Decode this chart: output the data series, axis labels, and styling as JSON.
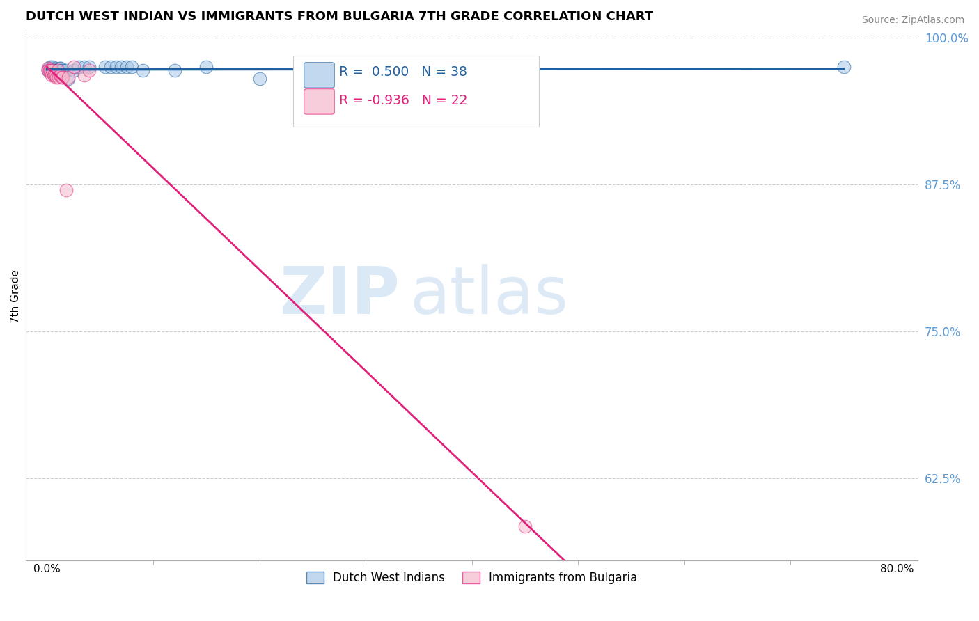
{
  "title": "DUTCH WEST INDIAN VS IMMIGRANTS FROM BULGARIA 7TH GRADE CORRELATION CHART",
  "source": "Source: ZipAtlas.com",
  "ylabel": "7th Grade",
  "blue_R": 0.5,
  "blue_N": 38,
  "pink_R": -0.936,
  "pink_N": 22,
  "blue_color": "#a8c8e8",
  "pink_color": "#f4b8cc",
  "blue_line_color": "#2060a0",
  "pink_line_color": "#e0207a",
  "watermark_zip": "ZIP",
  "watermark_atlas": "atlas",
  "background_color": "#ffffff",
  "grid_color": "#cccccc",
  "axis_color": "#aaaaaa",
  "right_tick_color": "#5b9bd5",
  "legend_text_color": "#2060a0",
  "blue_scatter_x": [
    0.001,
    0.001,
    0.002,
    0.002,
    0.003,
    0.004,
    0.004,
    0.005,
    0.006,
    0.006,
    0.007,
    0.008,
    0.008,
    0.009,
    0.01,
    0.011,
    0.012,
    0.013,
    0.014,
    0.015,
    0.018,
    0.02,
    0.025,
    0.03,
    0.035,
    0.04,
    0.055,
    0.06,
    0.065,
    0.07,
    0.075,
    0.08,
    0.09,
    0.12,
    0.15,
    0.2,
    0.3,
    0.75
  ],
  "blue_scatter_y": [
    0.973,
    0.972,
    0.974,
    0.972,
    0.975,
    0.974,
    0.973,
    0.975,
    0.973,
    0.972,
    0.973,
    0.974,
    0.972,
    0.972,
    0.972,
    0.972,
    0.974,
    0.974,
    0.972,
    0.972,
    0.972,
    0.965,
    0.972,
    0.975,
    0.975,
    0.975,
    0.975,
    0.975,
    0.975,
    0.975,
    0.975,
    0.975,
    0.972,
    0.972,
    0.975,
    0.965,
    0.972,
    0.975
  ],
  "pink_scatter_x": [
    0.001,
    0.001,
    0.002,
    0.003,
    0.004,
    0.005,
    0.006,
    0.007,
    0.008,
    0.009,
    0.01,
    0.011,
    0.012,
    0.013,
    0.014,
    0.015,
    0.018,
    0.02,
    0.025,
    0.035,
    0.04,
    0.45
  ],
  "pink_scatter_y": [
    0.974,
    0.972,
    0.972,
    0.972,
    0.968,
    0.972,
    0.968,
    0.968,
    0.968,
    0.966,
    0.972,
    0.966,
    0.968,
    0.968,
    0.966,
    0.966,
    0.87,
    0.966,
    0.975,
    0.968,
    0.972,
    0.584
  ],
  "blue_line_x0": 0.0,
  "blue_line_x1": 0.75,
  "pink_line_x0": 0.0,
  "pink_line_x1": 0.52,
  "xlim": [
    -0.02,
    0.82
  ],
  "ylim": [
    0.555,
    1.005
  ],
  "y_ticks": [
    1.0,
    0.875,
    0.75,
    0.625
  ],
  "y_tick_labels": [
    "100.0%",
    "87.5%",
    "75.0%",
    "62.5%"
  ],
  "x_ticks": [
    0.0,
    0.8
  ],
  "x_tick_labels": [
    "0.0%",
    "80.0%"
  ],
  "figsize": [
    14.06,
    8.92
  ],
  "dpi": 100
}
